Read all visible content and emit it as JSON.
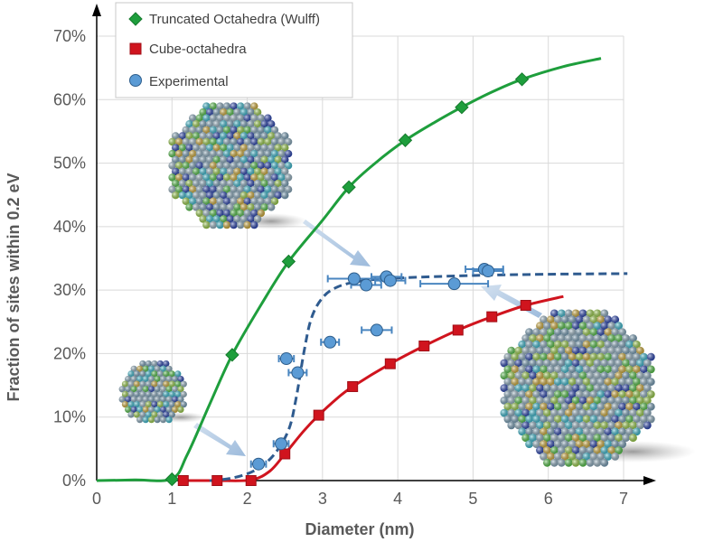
{
  "chart_data": {
    "type": "scatter",
    "title": "",
    "xlabel": "Diameter (nm)",
    "ylabel": "Fraction of sites within 0.2 eV",
    "xlim": [
      0,
      7
    ],
    "ylim": [
      0,
      70
    ],
    "x_ticks": [
      "0",
      "1",
      "2",
      "3",
      "4",
      "5",
      "6",
      "7"
    ],
    "y_ticks": [
      "0%",
      "10%",
      "20%",
      "30%",
      "40%",
      "50%",
      "60%",
      "70%"
    ],
    "grid": true,
    "legend_position": "top-left",
    "series": [
      {
        "name": "Truncated Octahedra (Wulff)",
        "marker": "diamond",
        "color": "#1e9e3c",
        "points": [
          [
            1.0,
            0.2
          ],
          [
            1.8,
            19.8
          ],
          [
            2.55,
            34.5
          ],
          [
            3.35,
            46.2
          ],
          [
            4.1,
            53.6
          ],
          [
            4.85,
            58.8
          ],
          [
            5.65,
            63.2
          ]
        ],
        "curve": [
          [
            0,
            0
          ],
          [
            0.5,
            0.1
          ],
          [
            1.0,
            0.3
          ],
          [
            1.2,
            4
          ],
          [
            1.5,
            12
          ],
          [
            1.8,
            19.8
          ],
          [
            2.2,
            28
          ],
          [
            2.55,
            34.5
          ],
          [
            3.0,
            41
          ],
          [
            3.35,
            46.2
          ],
          [
            3.7,
            50
          ],
          [
            4.1,
            53.6
          ],
          [
            4.5,
            56.5
          ],
          [
            4.85,
            58.8
          ],
          [
            5.25,
            61.2
          ],
          [
            5.65,
            63.2
          ],
          [
            6.2,
            65.2
          ],
          [
            6.7,
            66.5
          ]
        ]
      },
      {
        "name": "Cube-octahedra",
        "marker": "square",
        "color": "#d0141e",
        "points": [
          [
            1.15,
            0
          ],
          [
            1.6,
            0
          ],
          [
            2.05,
            0
          ],
          [
            2.5,
            4.2
          ],
          [
            2.95,
            10.3
          ],
          [
            3.4,
            14.8
          ],
          [
            3.9,
            18.4
          ],
          [
            4.35,
            21.2
          ],
          [
            4.8,
            23.7
          ],
          [
            5.25,
            25.8
          ],
          [
            5.7,
            27.6
          ]
        ],
        "curve": [
          [
            1.15,
            0
          ],
          [
            1.6,
            0
          ],
          [
            2.05,
            0.1
          ],
          [
            2.3,
            1.5
          ],
          [
            2.5,
            4.2
          ],
          [
            2.75,
            7.8
          ],
          [
            2.95,
            10.3
          ],
          [
            3.2,
            13
          ],
          [
            3.4,
            14.8
          ],
          [
            3.9,
            18.4
          ],
          [
            4.35,
            21.2
          ],
          [
            4.8,
            23.7
          ],
          [
            5.25,
            25.8
          ],
          [
            5.7,
            27.6
          ],
          [
            6.2,
            29
          ]
        ]
      },
      {
        "name": "Experimental",
        "marker": "circle",
        "color": "#5b9bd5",
        "points": [
          {
            "x": 2.15,
            "y": 2.6,
            "xerr": 0.1
          },
          {
            "x": 2.45,
            "y": 5.8,
            "xerr": 0.1
          },
          {
            "x": 2.52,
            "y": 19.2,
            "xerr": 0.1
          },
          {
            "x": 2.67,
            "y": 17.0,
            "xerr": 0.12
          },
          {
            "x": 3.1,
            "y": 21.8,
            "xerr": 0.12
          },
          {
            "x": 3.42,
            "y": 31.8,
            "xerr": 0.35
          },
          {
            "x": 3.58,
            "y": 30.8,
            "xerr": 0.2
          },
          {
            "x": 3.72,
            "y": 23.7,
            "xerr": 0.2
          },
          {
            "x": 3.85,
            "y": 32.1,
            "xerr": 0.2
          },
          {
            "x": 3.9,
            "y": 31.5,
            "xerr": 0.2
          },
          {
            "x": 4.75,
            "y": 31.0,
            "xerr": 0.45
          },
          {
            "x": 5.15,
            "y": 33.3,
            "xerr": 0.25
          },
          {
            "x": 5.2,
            "y": 33.0,
            "xerr": 0.2
          }
        ],
        "curve": [
          [
            1.5,
            0
          ],
          [
            1.8,
            0.4
          ],
          [
            2.1,
            1.6
          ],
          [
            2.35,
            4
          ],
          [
            2.55,
            8
          ],
          [
            2.65,
            13
          ],
          [
            2.75,
            20
          ],
          [
            2.85,
            25.5
          ],
          [
            3.0,
            28.8
          ],
          [
            3.2,
            30.5
          ],
          [
            3.5,
            31.4
          ],
          [
            4.0,
            31.9
          ],
          [
            5.0,
            32.3
          ],
          [
            6.0,
            32.5
          ],
          [
            7.05,
            32.6
          ]
        ]
      }
    ]
  }
}
